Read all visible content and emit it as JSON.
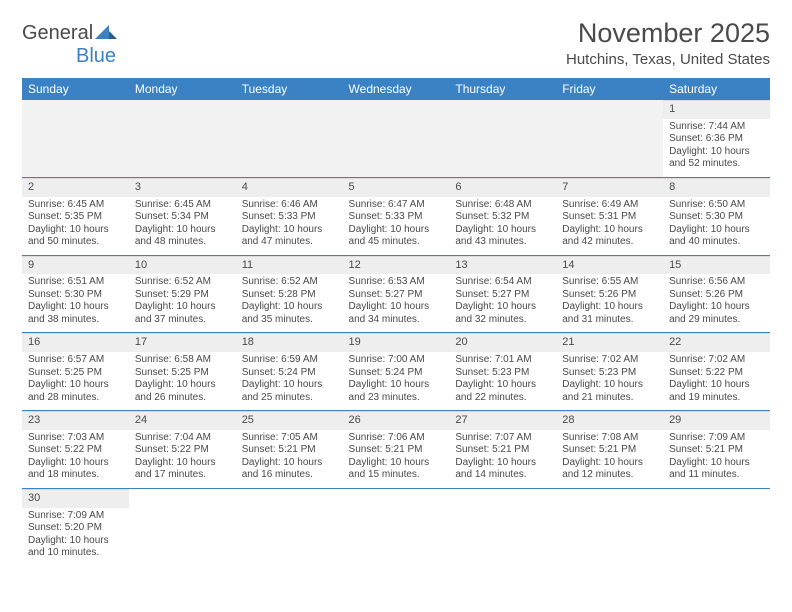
{
  "logo": {
    "text1": "General",
    "text2": "Blue"
  },
  "header": {
    "month_title": "November 2025",
    "location": "Hutchins, Texas, United States"
  },
  "colors": {
    "header_bg": "#3b82c4",
    "header_fg": "#ffffff",
    "blank_bg": "#f2f2f2",
    "daynum_bg": "#eeeeee",
    "text": "#4a4a4a",
    "row_border": "#3b82c4"
  },
  "calendar": {
    "type": "table",
    "day_headers": [
      "Sunday",
      "Monday",
      "Tuesday",
      "Wednesday",
      "Thursday",
      "Friday",
      "Saturday"
    ],
    "weeks": [
      [
        null,
        null,
        null,
        null,
        null,
        null,
        {
          "n": "1",
          "sunrise": "Sunrise: 7:44 AM",
          "sunset": "Sunset: 6:36 PM",
          "daylight": "Daylight: 10 hours and 52 minutes."
        }
      ],
      [
        {
          "n": "2",
          "sunrise": "Sunrise: 6:45 AM",
          "sunset": "Sunset: 5:35 PM",
          "daylight": "Daylight: 10 hours and 50 minutes."
        },
        {
          "n": "3",
          "sunrise": "Sunrise: 6:45 AM",
          "sunset": "Sunset: 5:34 PM",
          "daylight": "Daylight: 10 hours and 48 minutes."
        },
        {
          "n": "4",
          "sunrise": "Sunrise: 6:46 AM",
          "sunset": "Sunset: 5:33 PM",
          "daylight": "Daylight: 10 hours and 47 minutes."
        },
        {
          "n": "5",
          "sunrise": "Sunrise: 6:47 AM",
          "sunset": "Sunset: 5:33 PM",
          "daylight": "Daylight: 10 hours and 45 minutes."
        },
        {
          "n": "6",
          "sunrise": "Sunrise: 6:48 AM",
          "sunset": "Sunset: 5:32 PM",
          "daylight": "Daylight: 10 hours and 43 minutes."
        },
        {
          "n": "7",
          "sunrise": "Sunrise: 6:49 AM",
          "sunset": "Sunset: 5:31 PM",
          "daylight": "Daylight: 10 hours and 42 minutes."
        },
        {
          "n": "8",
          "sunrise": "Sunrise: 6:50 AM",
          "sunset": "Sunset: 5:30 PM",
          "daylight": "Daylight: 10 hours and 40 minutes."
        }
      ],
      [
        {
          "n": "9",
          "sunrise": "Sunrise: 6:51 AM",
          "sunset": "Sunset: 5:30 PM",
          "daylight": "Daylight: 10 hours and 38 minutes."
        },
        {
          "n": "10",
          "sunrise": "Sunrise: 6:52 AM",
          "sunset": "Sunset: 5:29 PM",
          "daylight": "Daylight: 10 hours and 37 minutes."
        },
        {
          "n": "11",
          "sunrise": "Sunrise: 6:52 AM",
          "sunset": "Sunset: 5:28 PM",
          "daylight": "Daylight: 10 hours and 35 minutes."
        },
        {
          "n": "12",
          "sunrise": "Sunrise: 6:53 AM",
          "sunset": "Sunset: 5:27 PM",
          "daylight": "Daylight: 10 hours and 34 minutes."
        },
        {
          "n": "13",
          "sunrise": "Sunrise: 6:54 AM",
          "sunset": "Sunset: 5:27 PM",
          "daylight": "Daylight: 10 hours and 32 minutes."
        },
        {
          "n": "14",
          "sunrise": "Sunrise: 6:55 AM",
          "sunset": "Sunset: 5:26 PM",
          "daylight": "Daylight: 10 hours and 31 minutes."
        },
        {
          "n": "15",
          "sunrise": "Sunrise: 6:56 AM",
          "sunset": "Sunset: 5:26 PM",
          "daylight": "Daylight: 10 hours and 29 minutes."
        }
      ],
      [
        {
          "n": "16",
          "sunrise": "Sunrise: 6:57 AM",
          "sunset": "Sunset: 5:25 PM",
          "daylight": "Daylight: 10 hours and 28 minutes."
        },
        {
          "n": "17",
          "sunrise": "Sunrise: 6:58 AM",
          "sunset": "Sunset: 5:25 PM",
          "daylight": "Daylight: 10 hours and 26 minutes."
        },
        {
          "n": "18",
          "sunrise": "Sunrise: 6:59 AM",
          "sunset": "Sunset: 5:24 PM",
          "daylight": "Daylight: 10 hours and 25 minutes."
        },
        {
          "n": "19",
          "sunrise": "Sunrise: 7:00 AM",
          "sunset": "Sunset: 5:24 PM",
          "daylight": "Daylight: 10 hours and 23 minutes."
        },
        {
          "n": "20",
          "sunrise": "Sunrise: 7:01 AM",
          "sunset": "Sunset: 5:23 PM",
          "daylight": "Daylight: 10 hours and 22 minutes."
        },
        {
          "n": "21",
          "sunrise": "Sunrise: 7:02 AM",
          "sunset": "Sunset: 5:23 PM",
          "daylight": "Daylight: 10 hours and 21 minutes."
        },
        {
          "n": "22",
          "sunrise": "Sunrise: 7:02 AM",
          "sunset": "Sunset: 5:22 PM",
          "daylight": "Daylight: 10 hours and 19 minutes."
        }
      ],
      [
        {
          "n": "23",
          "sunrise": "Sunrise: 7:03 AM",
          "sunset": "Sunset: 5:22 PM",
          "daylight": "Daylight: 10 hours and 18 minutes."
        },
        {
          "n": "24",
          "sunrise": "Sunrise: 7:04 AM",
          "sunset": "Sunset: 5:22 PM",
          "daylight": "Daylight: 10 hours and 17 minutes."
        },
        {
          "n": "25",
          "sunrise": "Sunrise: 7:05 AM",
          "sunset": "Sunset: 5:21 PM",
          "daylight": "Daylight: 10 hours and 16 minutes."
        },
        {
          "n": "26",
          "sunrise": "Sunrise: 7:06 AM",
          "sunset": "Sunset: 5:21 PM",
          "daylight": "Daylight: 10 hours and 15 minutes."
        },
        {
          "n": "27",
          "sunrise": "Sunrise: 7:07 AM",
          "sunset": "Sunset: 5:21 PM",
          "daylight": "Daylight: 10 hours and 14 minutes."
        },
        {
          "n": "28",
          "sunrise": "Sunrise: 7:08 AM",
          "sunset": "Sunset: 5:21 PM",
          "daylight": "Daylight: 10 hours and 12 minutes."
        },
        {
          "n": "29",
          "sunrise": "Sunrise: 7:09 AM",
          "sunset": "Sunset: 5:21 PM",
          "daylight": "Daylight: 10 hours and 11 minutes."
        }
      ],
      [
        {
          "n": "30",
          "sunrise": "Sunrise: 7:09 AM",
          "sunset": "Sunset: 5:20 PM",
          "daylight": "Daylight: 10 hours and 10 minutes."
        },
        null,
        null,
        null,
        null,
        null,
        null
      ]
    ]
  }
}
